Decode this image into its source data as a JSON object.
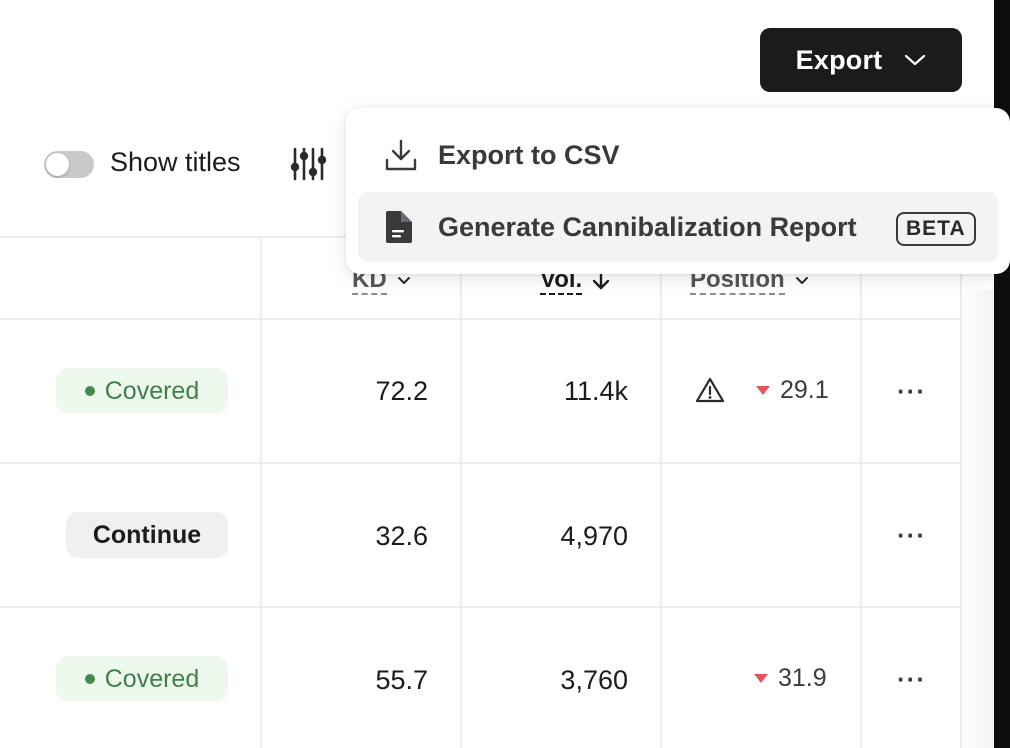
{
  "toolbar": {
    "export_label": "Export",
    "show_titles_label": "Show titles",
    "show_titles_on": false
  },
  "export_menu": {
    "items": [
      {
        "label": "Export to CSV",
        "icon": "download-icon"
      },
      {
        "label": "Generate Cannibalization Report",
        "icon": "document-icon",
        "badge": "BETA"
      }
    ]
  },
  "table": {
    "columns": [
      {
        "label": "KD",
        "sort": "chevron-down-icon"
      },
      {
        "label": "Vol.",
        "sort": "arrow-down-icon",
        "active": true
      },
      {
        "label": "Position",
        "sort": "chevron-down-icon"
      }
    ],
    "rows": [
      {
        "status": "Covered",
        "kd": "72.2",
        "vol": "11.4k",
        "position": "29.1",
        "warning": true,
        "more": "···"
      },
      {
        "status": "Continue",
        "kd": "32.6",
        "vol": "4,970",
        "position": "",
        "warning": false,
        "more": "···"
      },
      {
        "status": "Covered",
        "kd": "55.7",
        "vol": "3,760",
        "position": "31.9",
        "warning": false,
        "more": "···"
      }
    ]
  },
  "colors": {
    "covered_text": "#3e7f4b",
    "covered_bg": "#eef9ee",
    "position_down": "#e0575b",
    "button_dark": "#1b1b1d"
  }
}
